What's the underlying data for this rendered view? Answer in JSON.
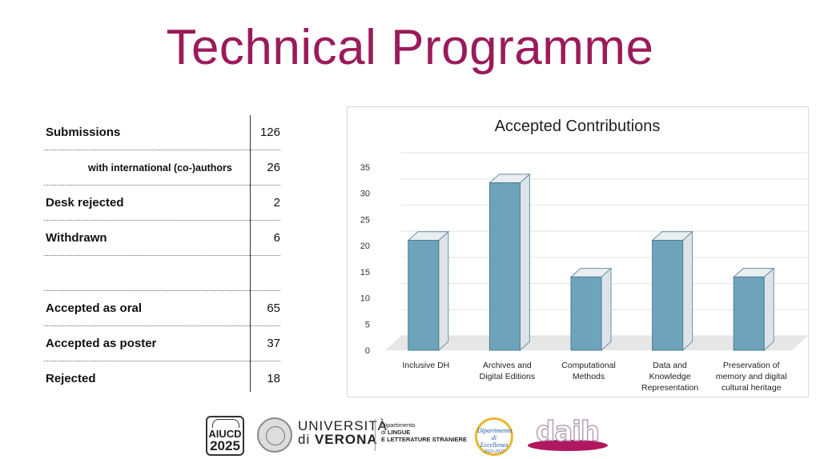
{
  "title": "Technical Programme",
  "stats": [
    {
      "label": "Submissions",
      "value": "126"
    },
    {
      "label": "with international (co-)authors",
      "value": "26",
      "sub": true
    },
    {
      "label": "Desk rejected",
      "value": "2"
    },
    {
      "label": "Withdrawn",
      "value": "6"
    },
    {
      "label": "",
      "value": ""
    },
    {
      "label": "Accepted as oral",
      "value": "65"
    },
    {
      "label": "Accepted as poster",
      "value": "37"
    },
    {
      "label": "Rejected",
      "value": "18"
    }
  ],
  "chart_data": {
    "type": "bar",
    "title": "Accepted Contributions",
    "categories": [
      [
        "Inclusive DH"
      ],
      [
        "Archives and",
        "Digital Editions"
      ],
      [
        "Computational",
        "Methods"
      ],
      [
        "Data and",
        "Knowledge",
        "Representation"
      ],
      [
        "Preservation of",
        "memory and digital",
        "cultural heritage"
      ]
    ],
    "values": [
      21,
      32,
      14,
      21,
      14
    ],
    "ylim": [
      0,
      35
    ],
    "yticks": [
      0,
      5,
      10,
      15,
      20,
      25,
      30,
      35
    ],
    "bar_color": "#6fa3bb",
    "grid": true
  },
  "footer": {
    "aiucd_top": "AIUCD",
    "aiucd_year": "2025",
    "univ_line1": "UNIVERSITÀ",
    "univ_line2_a": "di",
    "univ_line2_b": "VERONA",
    "dip_line1": "Dipartimento",
    "dip_line2_a": "di",
    "dip_line2_b": "LINGUE",
    "dip_line3": "E LETTERATURE STRANIERE",
    "eccellenza_1": "Dipartimento",
    "eccellenza_2": "di Eccellenza",
    "eccellenza_3": "2023-2027",
    "daih": "daih"
  }
}
